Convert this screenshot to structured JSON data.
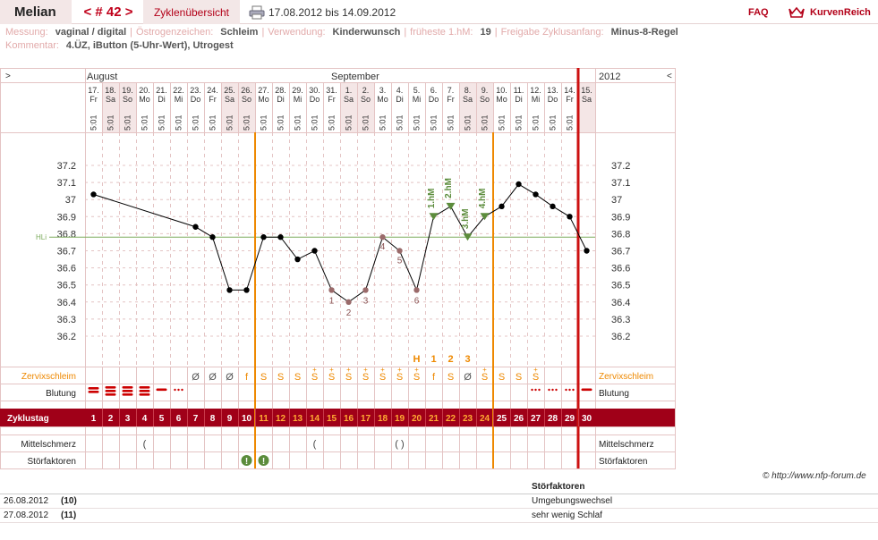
{
  "header": {
    "user": "Melian",
    "cycle_nav": "< # 42 >",
    "overview_tab": "Zyklenübersicht",
    "date_range": "17.08.2012 bis 14.09.2012",
    "faq": "FAQ",
    "logo_text": "KurvenReich",
    "print_icon": "printer-icon"
  },
  "info": {
    "line1": [
      {
        "label": "Messung:",
        "value": "vaginal / digital"
      },
      {
        "label": "Östrogenzeichen:",
        "value": "Schleim"
      },
      {
        "label": "Verwendung:",
        "value": "Kinderwunsch"
      },
      {
        "label": "früheste 1.hM:",
        "value": "19"
      },
      {
        "label": "Freigabe Zyklusanfang:",
        "value": "Minus-8-Regel"
      }
    ],
    "line2": [
      {
        "label": "Kommentar:",
        "value": "4.ÜZ, iButton (5-Uhr-Wert), Utrogest"
      }
    ]
  },
  "chart_data": {
    "type": "line",
    "months": [
      {
        "label": "August",
        "from_day": 1
      },
      {
        "label": "September",
        "from_day": 16
      }
    ],
    "year": "2012",
    "nav_left": ">",
    "nav_right": "<",
    "dates": [
      "17.",
      "18.",
      "19.",
      "20.",
      "21.",
      "22.",
      "23.",
      "24.",
      "25.",
      "26.",
      "27.",
      "28.",
      "29.",
      "30.",
      "31.",
      "1.",
      "2.",
      "3.",
      "4.",
      "5.",
      "6.",
      "7.",
      "8.",
      "9.",
      "10.",
      "11.",
      "12.",
      "13.",
      "14.",
      "15."
    ],
    "weekdays": [
      "Fr",
      "Sa",
      "So",
      "Mo",
      "Di",
      "Mi",
      "Do",
      "Fr",
      "Sa",
      "So",
      "Mo",
      "Di",
      "Mi",
      "Do",
      "Fr",
      "Sa",
      "So",
      "Mo",
      "Di",
      "Mi",
      "Do",
      "Fr",
      "Sa",
      "So",
      "Mo",
      "Di",
      "Mi",
      "Do",
      "Fr",
      "Sa"
    ],
    "weekend_days": [
      2,
      3,
      9,
      10,
      16,
      17,
      23,
      24,
      30
    ],
    "times": [
      "5:01",
      "5:01",
      "5:01",
      "5:01",
      "5:01",
      "5:01",
      "5:01",
      "5:01",
      "5:01",
      "5:01",
      "5:01",
      "5:01",
      "5:01",
      "5:01",
      "5:01",
      "5:01",
      "5:01",
      "5:01",
      "5:01",
      "5:01",
      "5:01",
      "5:01",
      "5:01",
      "5:01",
      "5:01",
      "5:01",
      "5:01",
      "5:01",
      "5:01",
      ""
    ],
    "y_ticks": [
      "37.2",
      "37.1",
      "37",
      "36.9",
      "36.8",
      "36.7",
      "36.6",
      "36.5",
      "36.4",
      "36.3",
      "36.2"
    ],
    "ylim": [
      36.15,
      37.25
    ],
    "cover_line": {
      "label": "HLi",
      "value": 36.78
    },
    "temperatures": [
      {
        "day": 1,
        "value": 37.03
      },
      {
        "day": 7,
        "value": 36.84
      },
      {
        "day": 8,
        "value": 36.78
      },
      {
        "day": 9,
        "value": 36.47
      },
      {
        "day": 10,
        "value": 36.47
      },
      {
        "day": 11,
        "value": 36.78
      },
      {
        "day": 12,
        "value": 36.78
      },
      {
        "day": 13,
        "value": 36.65
      },
      {
        "day": 14,
        "value": 36.7
      },
      {
        "day": 15,
        "value": 36.47,
        "label": "1",
        "style": "pre"
      },
      {
        "day": 16,
        "value": 36.4,
        "label": "2",
        "style": "pre"
      },
      {
        "day": 17,
        "value": 36.47,
        "label": "3",
        "style": "pre"
      },
      {
        "day": 18,
        "value": 36.78,
        "label": "4",
        "style": "pre"
      },
      {
        "day": 19,
        "value": 36.7,
        "label": "5",
        "style": "pre"
      },
      {
        "day": 20,
        "value": 36.47,
        "label": "6",
        "style": "pre"
      },
      {
        "day": 21,
        "value": 36.9,
        "label": "1.hM",
        "style": "hm"
      },
      {
        "day": 22,
        "value": 36.96,
        "label": "2.hM",
        "style": "hm"
      },
      {
        "day": 23,
        "value": 36.78,
        "label": "3.hM",
        "style": "hm"
      },
      {
        "day": 24,
        "value": 36.9,
        "label": "4.hM",
        "style": "hm"
      },
      {
        "day": 25,
        "value": 36.96
      },
      {
        "day": 26,
        "value": 37.09
      },
      {
        "day": 27,
        "value": 37.03
      },
      {
        "day": 28,
        "value": 36.96
      },
      {
        "day": 29,
        "value": 36.9
      },
      {
        "day": 30,
        "value": 36.7
      }
    ],
    "orange_lines_after_day": [
      10,
      24
    ],
    "red_line_after_day": 29,
    "peak_markers": [
      {
        "day": 20,
        "text": "H"
      },
      {
        "day": 21,
        "text": "1"
      },
      {
        "day": 22,
        "text": "2"
      },
      {
        "day": 23,
        "text": "3"
      }
    ],
    "row_labels": {
      "mucus": "Zervixschleim",
      "bleeding": "Blutung",
      "cycle_day": "Zyklustag",
      "pain": "Mittelschmerz",
      "disturbance": "Störfaktoren"
    },
    "mucus": [
      {
        "day": 7,
        "symbol": "Ø",
        "color": "#555555"
      },
      {
        "day": 8,
        "symbol": "Ø",
        "color": "#555555"
      },
      {
        "day": 9,
        "symbol": "Ø",
        "color": "#555555"
      },
      {
        "day": 10,
        "symbol": "f",
        "color": "#ee8800"
      },
      {
        "day": 11,
        "symbol": "S",
        "color": "#ee8800"
      },
      {
        "day": 12,
        "symbol": "S",
        "color": "#ee8800"
      },
      {
        "day": 13,
        "symbol": "S",
        "color": "#ee8800"
      },
      {
        "day": 14,
        "symbol": "S+",
        "color": "#ee8800"
      },
      {
        "day": 15,
        "symbol": "S+",
        "color": "#ee8800"
      },
      {
        "day": 16,
        "symbol": "S+",
        "color": "#ee8800"
      },
      {
        "day": 17,
        "symbol": "S+",
        "color": "#ee8800"
      },
      {
        "day": 18,
        "symbol": "S+",
        "color": "#ee8800"
      },
      {
        "day": 19,
        "symbol": "S+",
        "color": "#ee8800"
      },
      {
        "day": 20,
        "symbol": "S+",
        "color": "#ee8800"
      },
      {
        "day": 21,
        "symbol": "f",
        "color": "#ee8800"
      },
      {
        "day": 22,
        "symbol": "S",
        "color": "#ee8800"
      },
      {
        "day": 23,
        "symbol": "Ø",
        "color": "#555555"
      },
      {
        "day": 24,
        "symbol": "S+",
        "color": "#ee8800"
      },
      {
        "day": 25,
        "symbol": "S",
        "color": "#ee8800"
      },
      {
        "day": 26,
        "symbol": "S",
        "color": "#ee8800"
      },
      {
        "day": 27,
        "symbol": "S+",
        "color": "#ee8800"
      }
    ],
    "bleeding": [
      {
        "day": 1,
        "level": "medium"
      },
      {
        "day": 2,
        "level": "heavy"
      },
      {
        "day": 3,
        "level": "heavy"
      },
      {
        "day": 4,
        "level": "heavy"
      },
      {
        "day": 5,
        "level": "light"
      },
      {
        "day": 6,
        "level": "spotting"
      },
      {
        "day": 27,
        "level": "spotting"
      },
      {
        "day": 28,
        "level": "spotting"
      },
      {
        "day": 29,
        "level": "spotting"
      },
      {
        "day": 30,
        "level": "light"
      }
    ],
    "cycle_days": [
      "1",
      "2",
      "3",
      "4",
      "5",
      "6",
      "7",
      "8",
      "9",
      "10",
      "11",
      "12",
      "13",
      "14",
      "15",
      "16",
      "17",
      "18",
      "19",
      "20",
      "21",
      "22",
      "23",
      "24",
      "25",
      "26",
      "27",
      "28",
      "29",
      "30"
    ],
    "fertile_from_day": 11,
    "fertile_to_day": 24,
    "pain": [
      {
        "day": 4,
        "symbol": "("
      },
      {
        "day": 14,
        "symbol": "("
      },
      {
        "day": 19,
        "symbol": "( )"
      }
    ],
    "disturbance_days": [
      10,
      11
    ],
    "disturbance_symbol": "!"
  },
  "footer": {
    "credit": "© http://www.nfp-forum.de",
    "notes_title": "Störfaktoren",
    "notes": [
      {
        "date": "26.08.2012",
        "day": "(10)",
        "text": "Umgebungswechsel"
      },
      {
        "date": "27.08.2012",
        "day": "(11)",
        "text": "sehr wenig Schlaf"
      }
    ]
  },
  "colors": {
    "accent_red": "#a00018",
    "grid_pink": "#e4c4c4",
    "weekend_fill": "#f4e6e6",
    "orange": "#ee8800",
    "green": "#5c8c3c",
    "line_black": "#000000",
    "pre_label": "#8a5252",
    "bleed_red": "#cc0000"
  }
}
